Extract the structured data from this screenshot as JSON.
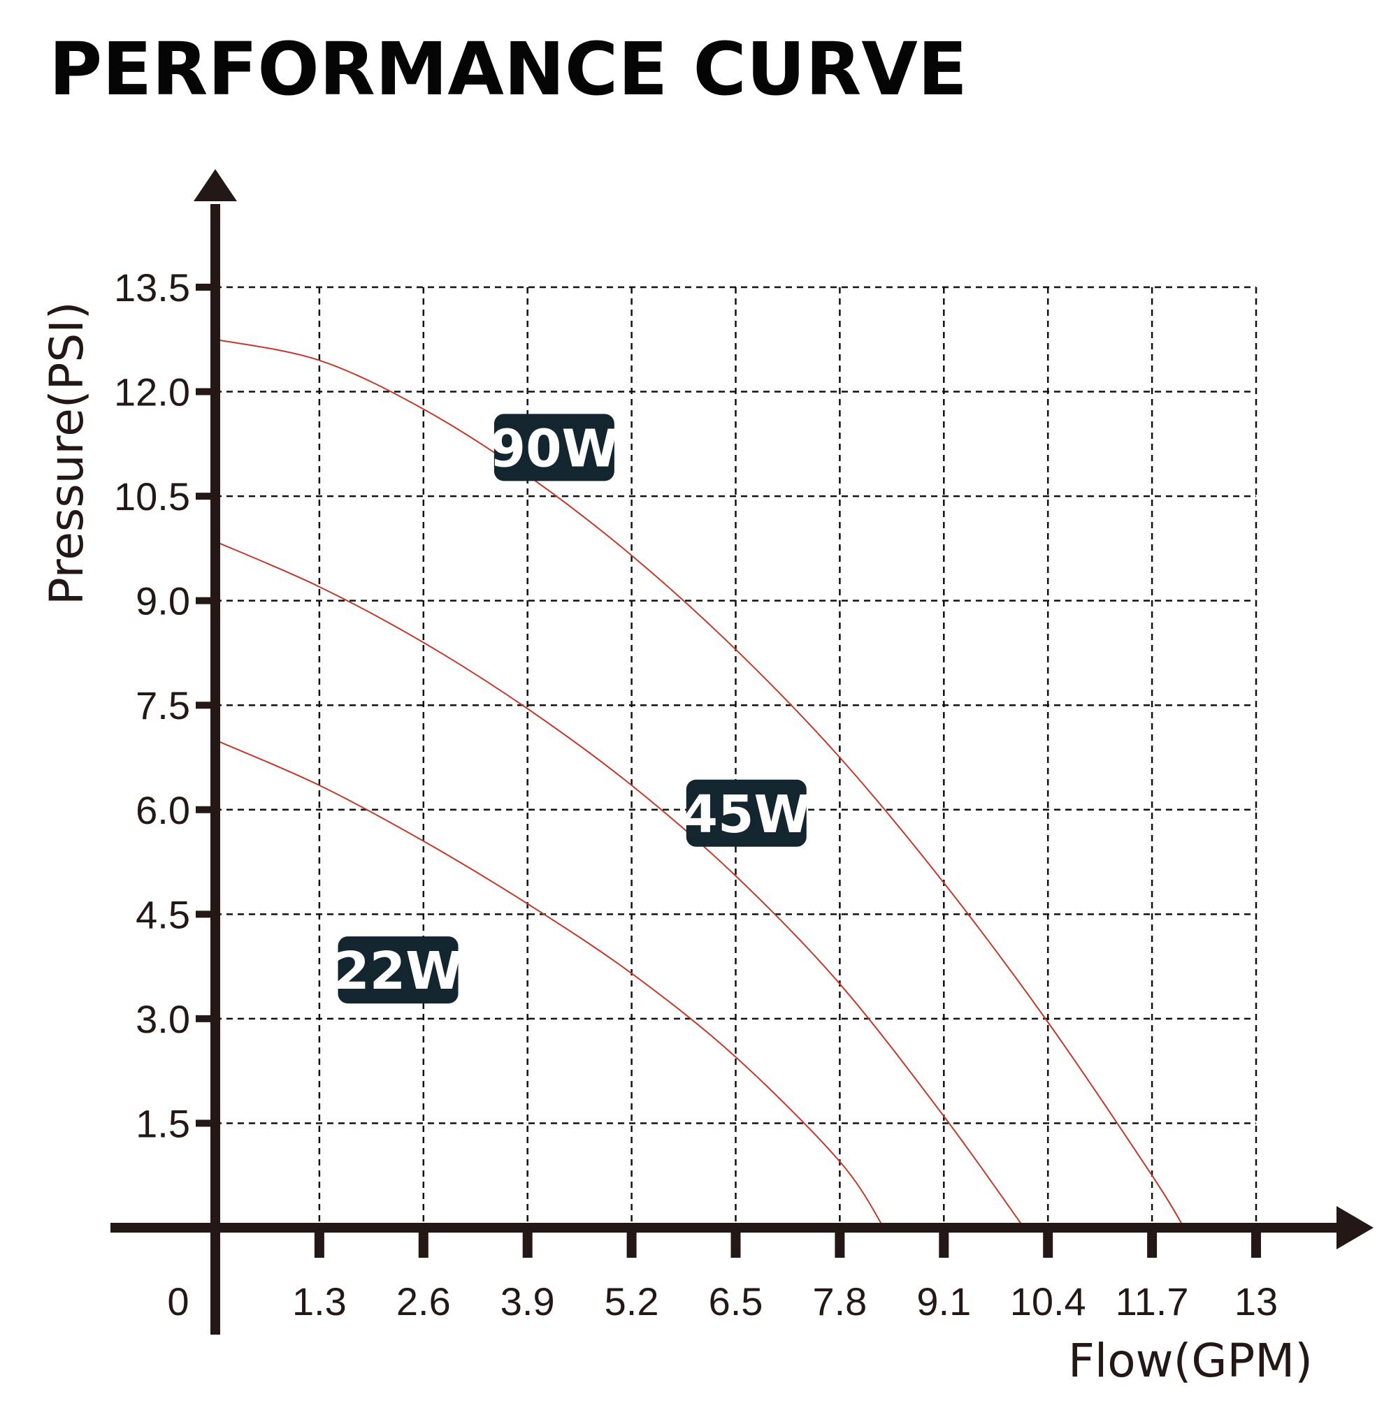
{
  "chart_data": {
    "type": "line",
    "title": "PERFORMANCE CURVE",
    "xlabel": "Flow(GPM)",
    "ylabel": "Pressure(PSI)",
    "xlim": [
      0,
      13
    ],
    "ylim": [
      0,
      13.5
    ],
    "x_ticks": [
      "0",
      "1.3",
      "2.6",
      "3.9",
      "5.2",
      "6.5",
      "7.8",
      "9.1",
      "10.4",
      "11.7",
      "13"
    ],
    "y_ticks": [
      "1.5",
      "3.0",
      "4.5",
      "6.0",
      "7.5",
      "9.0",
      "10.5",
      "12.0",
      "13.5"
    ],
    "grid": true,
    "grid_style": "dashed",
    "series": [
      {
        "name": "90W",
        "x": [
          0,
          1.3,
          2.6,
          3.9,
          5.2,
          6.5,
          7.8,
          9.1,
          10.4,
          11.7,
          12.1
        ],
        "y": [
          12.75,
          12.45,
          11.75,
          10.8,
          9.65,
          8.3,
          6.75,
          4.95,
          2.95,
          0.75,
          0
        ]
      },
      {
        "name": "45W",
        "x": [
          0,
          1.3,
          2.6,
          3.9,
          5.2,
          6.5,
          7.8,
          9.1,
          10.1
        ],
        "y": [
          9.85,
          9.2,
          8.4,
          7.45,
          6.35,
          5.05,
          3.5,
          1.6,
          0
        ]
      },
      {
        "name": "22W",
        "x": [
          0,
          1.3,
          2.6,
          3.9,
          5.2,
          6.5,
          7.8,
          8.35
        ],
        "y": [
          7.0,
          6.35,
          5.55,
          4.65,
          3.65,
          2.45,
          0.95,
          0
        ]
      }
    ],
    "curve_color": "#c0392b",
    "badge_color": "#13252f",
    "axis_color": "#231815"
  }
}
